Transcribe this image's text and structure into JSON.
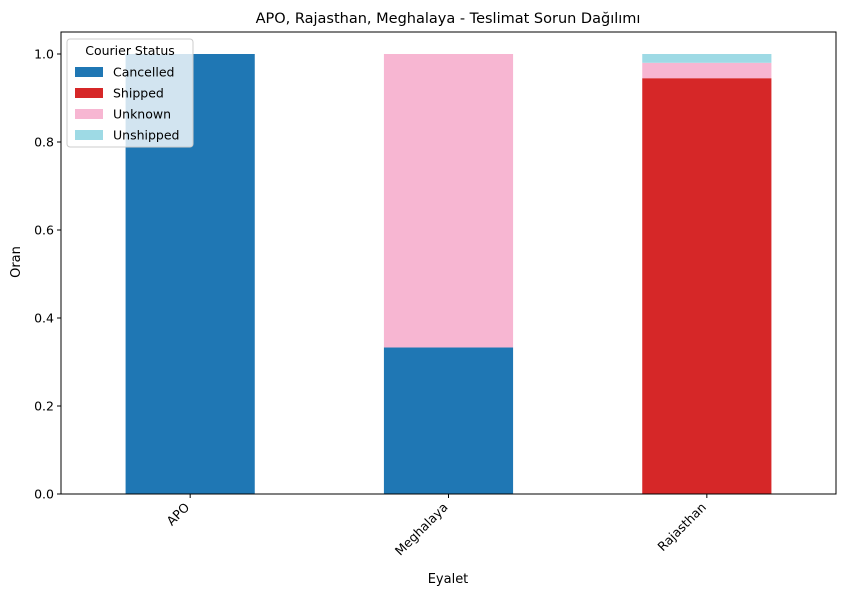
{
  "chart_data": {
    "type": "bar",
    "stacked": true,
    "title": "APO, Rajasthan, Meghalaya - Teslimat Sorun Dağılımı",
    "xlabel": "Eyalet",
    "ylabel": "Oran",
    "categories": [
      "APO",
      "Meghalaya",
      "Rajasthan"
    ],
    "ylim": [
      0,
      1.05
    ],
    "yticks": [
      "0.0",
      "0.2",
      "0.4",
      "0.6",
      "0.8",
      "1.0"
    ],
    "legend": {
      "title": "Courier Status",
      "placement": "top-left"
    },
    "series": [
      {
        "name": "Cancelled",
        "color": "#1f77b4",
        "values": [
          1.0,
          0.333,
          0.0
        ]
      },
      {
        "name": "Shipped",
        "color": "#d62728",
        "values": [
          0.0,
          0.0,
          0.945
        ]
      },
      {
        "name": "Unknown",
        "color": "#f7b6d2",
        "values": [
          0.0,
          0.667,
          0.035
        ]
      },
      {
        "name": "Unshipped",
        "color": "#9edae5",
        "values": [
          0.0,
          0.0,
          0.02
        ]
      }
    ],
    "grid": false
  }
}
